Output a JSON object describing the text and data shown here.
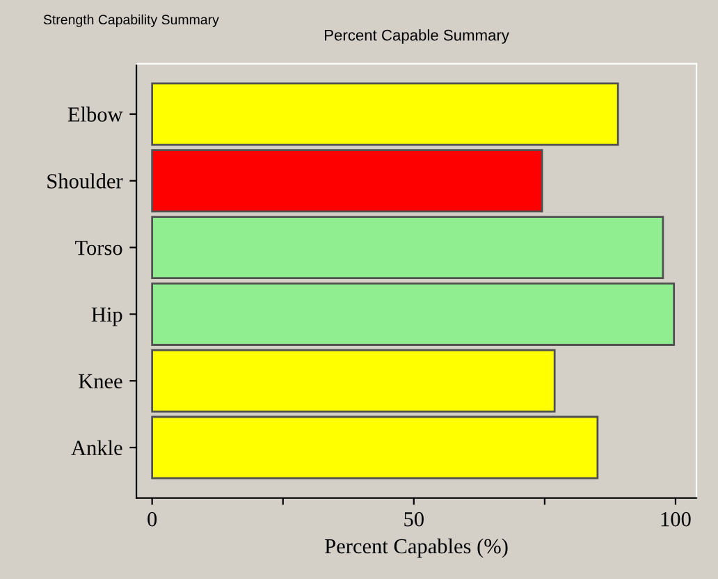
{
  "chart_data": {
    "type": "bar",
    "orientation": "horizontal",
    "title": "Percent Capable Summary",
    "xlabel": "Percent Capables (%)",
    "annotations": [
      "Strength Capability Summary"
    ],
    "categories": [
      "Elbow",
      "Shoulder",
      "Torso",
      "Hip",
      "Knee",
      "Ankle"
    ],
    "values": [
      89.0,
      74.5,
      97.6,
      99.7,
      76.9,
      85.1
    ],
    "colors": [
      "#ffff00",
      "#ff0000",
      "#90ee90",
      "#90ee90",
      "#ffff00",
      "#ffff00"
    ],
    "xlim": [
      -3,
      104
    ],
    "xticks": [
      0,
      {
        "value": 25,
        "label": null
      },
      50,
      {
        "value": 75,
        "label": null
      },
      100
    ],
    "grid": false,
    "legend": false
  }
}
